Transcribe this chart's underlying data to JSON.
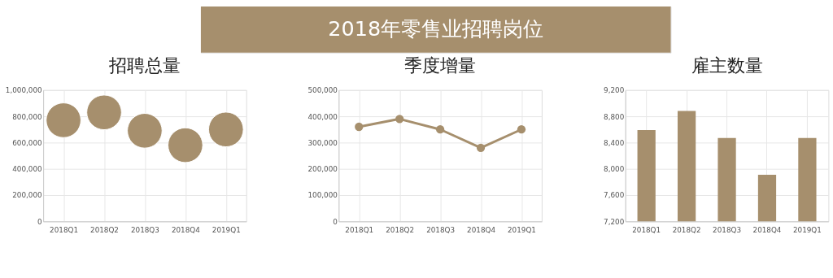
{
  "chart_data": [
    {
      "type": "bubble",
      "title": "招聘总量",
      "annotations": [
        "2018年零售业招聘岗位"
      ],
      "categories": [
        "2018Q1",
        "2018Q2",
        "2018Q3",
        "2018Q4",
        "2019Q1"
      ],
      "values": [
        770000,
        830000,
        690000,
        580000,
        700000
      ],
      "sizes": [
        1,
        1,
        1,
        1,
        1
      ],
      "color": "#a68f6d",
      "ylim": [
        0,
        1000000
      ],
      "yticks": [
        0,
        {
          "value": 200000,
          "label": "200,000"
        },
        {
          "value": 400000,
          "label": "400,000"
        },
        {
          "value": 600000,
          "label": "600,000"
        },
        {
          "value": 800000,
          "label": "800,000"
        },
        {
          "value": 1000000,
          "label": "1,000,000"
        }
      ],
      "grid": true
    },
    {
      "type": "line",
      "title": "季度增量",
      "categories": [
        "2018Q1",
        "2018Q2",
        "2018Q3",
        "2018Q4",
        "2019Q1"
      ],
      "values": [
        360000,
        390000,
        350000,
        280000,
        350000
      ],
      "color": "#a68f6d",
      "marker": "circle",
      "line_style": "solid",
      "ylim": [
        0,
        500000
      ],
      "yticks": [
        0,
        {
          "value": 100000,
          "label": "100,000"
        },
        {
          "value": 200000,
          "label": "200,000"
        },
        {
          "value": 300000,
          "label": "300,000"
        },
        {
          "value": 400000,
          "label": "400,000"
        },
        {
          "value": 500000,
          "label": "500,000"
        }
      ],
      "grid": true
    },
    {
      "type": "bar",
      "title": "雇主数量",
      "categories": [
        "2018Q1",
        "2018Q2",
        "2018Q3",
        "2018Q4",
        "2019Q1"
      ],
      "values": [
        8590,
        8880,
        8470,
        7910,
        8470
      ],
      "color": "#a68f6d",
      "ylim": [
        7200,
        9200
      ],
      "yticks": [
        {
          "value": 7200,
          "label": "7,200"
        },
        {
          "value": 7600,
          "label": "7,600"
        },
        {
          "value": 8000,
          "label": "8,000"
        },
        {
          "value": 8400,
          "label": "8,400"
        },
        {
          "value": 8800,
          "label": "8,800"
        },
        {
          "value": 9200,
          "label": "9,200"
        }
      ],
      "grid": true
    }
  ]
}
